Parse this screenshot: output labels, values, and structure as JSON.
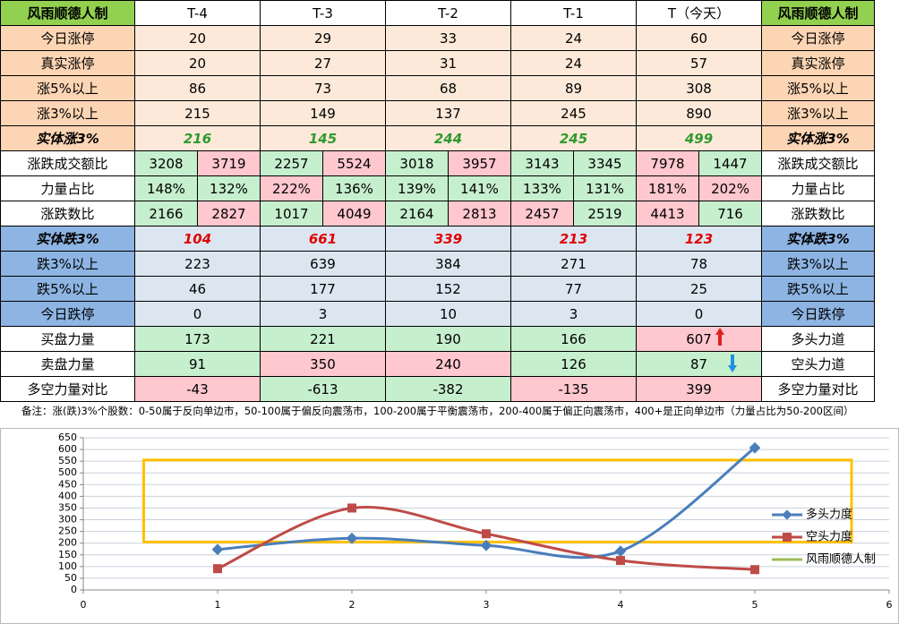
{
  "table": {
    "header": [
      "风雨顺德人制",
      "T-4",
      "T-3",
      "T-2",
      "T-1",
      "T（今天）",
      "风雨顺德人制"
    ],
    "rows": [
      {
        "label": "今日涨停",
        "cells": [
          20,
          29,
          33,
          24,
          60
        ],
        "right": "今日涨停"
      },
      {
        "label": "真实涨停",
        "cells": [
          20,
          27,
          31,
          24,
          57
        ],
        "right": "真实涨停"
      },
      {
        "label": "涨5%以上",
        "cells": [
          86,
          73,
          68,
          89,
          308
        ],
        "right": "涨5%以上"
      },
      {
        "label": "涨3%以上",
        "cells": [
          215,
          149,
          137,
          245,
          890
        ],
        "right": "涨3%以上"
      },
      {
        "label": "实体涨3%",
        "cells": [
          216,
          145,
          244,
          245,
          499
        ],
        "right": "实体涨3%"
      },
      {
        "label": "涨跌成交额比",
        "cells": [
          [
            3208,
            3719
          ],
          [
            2257,
            5524
          ],
          [
            3018,
            3957
          ],
          [
            3143,
            3345
          ],
          [
            7978,
            1447
          ]
        ],
        "right": "涨跌成交额比"
      },
      {
        "label": "力量占比",
        "cells": [
          [
            "148%",
            "132%"
          ],
          [
            "222%",
            "136%"
          ],
          [
            "139%",
            "141%"
          ],
          [
            "133%",
            "131%"
          ],
          [
            "181%",
            "202%"
          ]
        ],
        "right": "力量占比"
      },
      {
        "label": "涨跌数比",
        "cells": [
          [
            2166,
            2827
          ],
          [
            1017,
            4049
          ],
          [
            2164,
            2813
          ],
          [
            2457,
            2519
          ],
          [
            4413,
            716
          ]
        ],
        "right": "涨跌数比"
      },
      {
        "label": "实体跌3%",
        "cells": [
          104,
          661,
          339,
          213,
          123
        ],
        "right": "实体跌3%"
      },
      {
        "label": "跌3%以上",
        "cells": [
          223,
          639,
          384,
          271,
          78
        ],
        "right": "跌3%以上"
      },
      {
        "label": "跌5%以上",
        "cells": [
          46,
          177,
          152,
          77,
          25
        ],
        "right": "跌5%以上"
      },
      {
        "label": "今日跌停",
        "cells": [
          0,
          3,
          10,
          3,
          0
        ],
        "right": "今日跌停"
      },
      {
        "label": "买盘力量",
        "cells": [
          173,
          221,
          190,
          166,
          607
        ],
        "right": "多头力道"
      },
      {
        "label": "卖盘力量",
        "cells": [
          91,
          350,
          240,
          126,
          87
        ],
        "right": "空头力道"
      },
      {
        "label": "多空力量对比",
        "cells": [
          -43,
          -613,
          -382,
          -135,
          399
        ],
        "right": "多空力量对比"
      }
    ],
    "note": "备注：涨(跌)3%个股数：0-50属于反向单边市，50-100属于偏反向震荡市，100-200属于平衡震荡市，200-400属于偏正向震荡市，400+是正向单边市（力量占比为50-200区间）"
  },
  "chart_data": {
    "type": "line",
    "x": [
      1,
      2,
      3,
      4,
      5
    ],
    "series": [
      {
        "name": "多头力度",
        "color": "#4a7ebb",
        "values": [
          173,
          221,
          190,
          166,
          607
        ]
      },
      {
        "name": "空头力度",
        "color": "#be4b48",
        "values": [
          91,
          350,
          240,
          126,
          87
        ]
      },
      {
        "name": "风雨顺德人制",
        "color": "#9bbb59"
      }
    ],
    "xlim": [
      0,
      6
    ],
    "xticks": [
      0,
      1,
      2,
      3,
      4,
      5,
      6
    ],
    "ylim": [
      0,
      650
    ],
    "yticks": [
      0,
      50,
      100,
      150,
      200,
      250,
      300,
      350,
      400,
      450,
      500,
      550,
      600,
      650
    ],
    "grid": true
  }
}
